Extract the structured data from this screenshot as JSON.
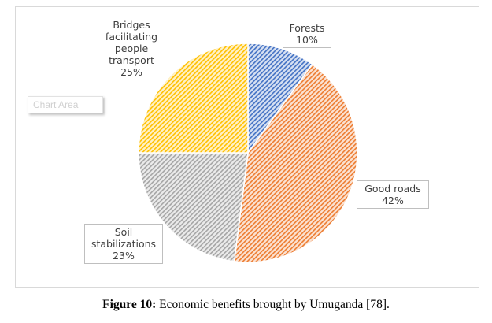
{
  "chart_data": {
    "type": "pie",
    "categories": [
      "Forests",
      "Good roads",
      "Soil stabilizations",
      "Bridges facilitating people transport"
    ],
    "values": [
      10,
      42,
      23,
      25
    ],
    "value_labels": [
      "10%",
      "42%",
      "23%",
      "25%"
    ],
    "colors": [
      "#4472c4",
      "#ed7d31",
      "#a5a5a5",
      "#ffc000"
    ],
    "fill_pattern": "diagonal-hatch",
    "start_angle_deg": 0,
    "direction": "clockwise",
    "legend": "none",
    "title": ""
  },
  "labels": [
    {
      "lines": [
        "Forests"
      ],
      "pct": "10%"
    },
    {
      "lines": [
        "Good roads"
      ],
      "pct": "42%"
    },
    {
      "lines": [
        "Soil",
        "stabilizations"
      ],
      "pct": "23%"
    },
    {
      "lines": [
        "Bridges",
        "facilitating",
        "people",
        "transport"
      ],
      "pct": "25%"
    }
  ],
  "tooltip": {
    "text": "Chart Area"
  },
  "caption": {
    "label": "Figure 10:",
    "text": " Economic benefits brought by Umuganda [78]."
  }
}
